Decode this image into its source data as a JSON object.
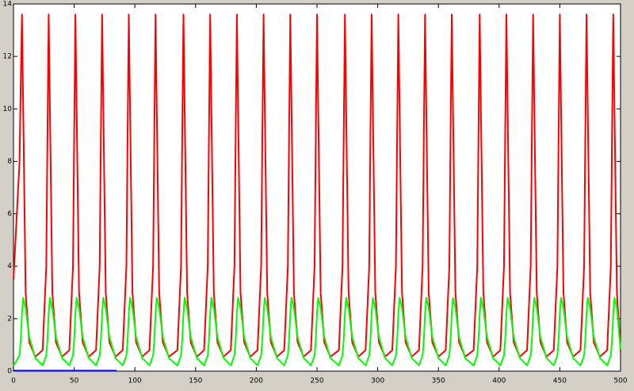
{
  "chart_data": {
    "type": "line",
    "xlim": [
      0,
      500
    ],
    "xticks": [
      0,
      50,
      100,
      150,
      200,
      250,
      300,
      350,
      400,
      450,
      500
    ],
    "ylim": [
      0,
      14
    ],
    "yticks": [
      0,
      2,
      4,
      6,
      8,
      10,
      12,
      14
    ],
    "series": [
      {
        "color": "#ff0000",
        "x": [
          0,
          5,
          6,
          7,
          8,
          10,
          13,
          18,
          24,
          27,
          28,
          29,
          30,
          32,
          35,
          40,
          46,
          49,
          50,
          51,
          52,
          54,
          57,
          62,
          68,
          71,
          72,
          73,
          74,
          76,
          79,
          84,
          90,
          93,
          94,
          95,
          96,
          98,
          101,
          106,
          112,
          115,
          116,
          117,
          118,
          120,
          123,
          128,
          135,
          138,
          139,
          140,
          141,
          143,
          146,
          151,
          157,
          160,
          161,
          162,
          163,
          165,
          168,
          173,
          179,
          182,
          183,
          184,
          185,
          187,
          190,
          195,
          201,
          204,
          205,
          206,
          207,
          209,
          212,
          217,
          223,
          226,
          227,
          228,
          229,
          231,
          234,
          239,
          245,
          248,
          249,
          250,
          251,
          253,
          256,
          261,
          268,
          271,
          272,
          273,
          274,
          276,
          279,
          284,
          290,
          293,
          294,
          295,
          296,
          298,
          301,
          306,
          312,
          315,
          316,
          317,
          318,
          320,
          323,
          328,
          334,
          337,
          338,
          339,
          340,
          342,
          345,
          350,
          356,
          359,
          360,
          361,
          362,
          364,
          367,
          372,
          379,
          382,
          383,
          384,
          385,
          387,
          390,
          395,
          401,
          404,
          405,
          406,
          407,
          409,
          412,
          417,
          423,
          426,
          427,
          428,
          429,
          431,
          434,
          439,
          445,
          448,
          449,
          450,
          451,
          453,
          456,
          461,
          467,
          470,
          471,
          472,
          473,
          475,
          478,
          483,
          489,
          492,
          493,
          494,
          495,
          497,
          500
        ],
        "values": [
          3.5,
          8,
          11,
          13.6,
          10,
          3,
          1.1,
          0.55,
          0.8,
          4,
          9,
          13.6,
          10,
          3,
          1.1,
          0.55,
          0.8,
          4,
          9,
          13.6,
          10,
          3,
          1.1,
          0.55,
          0.8,
          4,
          9,
          13.6,
          10,
          3,
          1.1,
          0.55,
          0.8,
          4,
          9,
          13.6,
          10,
          3,
          1.1,
          0.55,
          0.8,
          4,
          9,
          13.6,
          10,
          3,
          1.1,
          0.55,
          0.8,
          4,
          9,
          13.6,
          10,
          3,
          1.1,
          0.55,
          0.8,
          4,
          9,
          13.6,
          10,
          3,
          1.1,
          0.55,
          0.8,
          4,
          9,
          13.6,
          10,
          3,
          1.1,
          0.55,
          0.8,
          4,
          9,
          13.6,
          10,
          3,
          1.1,
          0.55,
          0.8,
          4,
          9,
          13.6,
          10,
          3,
          1.1,
          0.55,
          0.8,
          4,
          9,
          13.6,
          10,
          3,
          1.1,
          0.55,
          0.8,
          4,
          9,
          13.6,
          10,
          3,
          1.1,
          0.55,
          0.8,
          4,
          9,
          13.6,
          10,
          3,
          1.1,
          0.55,
          0.8,
          4,
          9,
          13.6,
          10,
          3,
          1.1,
          0.55,
          0.8,
          4,
          9,
          13.6,
          10,
          3,
          1.1,
          0.55,
          0.8,
          4,
          9,
          13.6,
          10,
          3,
          1.1,
          0.55,
          0.8,
          4,
          9,
          13.6,
          10,
          3,
          1.1,
          0.55,
          0.8,
          4,
          9,
          13.6,
          10,
          3,
          1.1,
          0.55,
          0.8,
          4,
          9,
          13.6,
          10,
          3,
          1.1,
          0.55,
          0.8,
          4,
          9,
          13.6,
          10,
          3,
          1.1,
          0.55,
          0.8,
          4,
          9,
          13.6,
          10,
          3,
          1.1,
          0.55,
          0.8,
          4,
          9,
          13.6,
          10,
          3,
          0.75
        ]
      },
      {
        "color": "#00ff00",
        "x": [
          0,
          5,
          6,
          7,
          8,
          10,
          13,
          18,
          24,
          27,
          28,
          29,
          30,
          32,
          35,
          40,
          46,
          49,
          50,
          51,
          52,
          54,
          57,
          62,
          68,
          71,
          72,
          73,
          74,
          76,
          79,
          84,
          90,
          93,
          94,
          95,
          96,
          98,
          101,
          106,
          112,
          115,
          116,
          117,
          118,
          120,
          123,
          128,
          135,
          138,
          139,
          140,
          141,
          143,
          146,
          151,
          157,
          160,
          161,
          162,
          163,
          165,
          168,
          173,
          179,
          182,
          183,
          184,
          185,
          187,
          190,
          195,
          201,
          204,
          205,
          206,
          207,
          209,
          212,
          217,
          223,
          226,
          227,
          228,
          229,
          231,
          234,
          239,
          245,
          248,
          249,
          250,
          251,
          253,
          256,
          261,
          268,
          271,
          272,
          273,
          274,
          276,
          279,
          284,
          290,
          293,
          294,
          295,
          296,
          298,
          301,
          306,
          312,
          315,
          316,
          317,
          318,
          320,
          323,
          328,
          334,
          337,
          338,
          339,
          340,
          342,
          345,
          350,
          356,
          359,
          360,
          361,
          362,
          364,
          367,
          372,
          379,
          382,
          383,
          384,
          385,
          387,
          390,
          395,
          401,
          404,
          405,
          406,
          407,
          409,
          412,
          417,
          423,
          426,
          427,
          428,
          429,
          431,
          434,
          439,
          445,
          448,
          449,
          450,
          451,
          453,
          456,
          461,
          467,
          470,
          471,
          472,
          473,
          475,
          478,
          483,
          489,
          492,
          493,
          494,
          495,
          497,
          500
        ],
        "values": [
          0.2,
          0.6,
          1.2,
          2.2,
          2.8,
          2.4,
          1.3,
          0.5,
          0.22,
          0.6,
          1.2,
          2.2,
          2.8,
          2.4,
          1.3,
          0.5,
          0.22,
          0.6,
          1.2,
          2.2,
          2.8,
          2.4,
          1.3,
          0.5,
          0.22,
          0.6,
          1.2,
          2.2,
          2.8,
          2.4,
          1.3,
          0.5,
          0.22,
          0.6,
          1.2,
          2.2,
          2.8,
          2.4,
          1.3,
          0.5,
          0.22,
          0.6,
          1.2,
          2.2,
          2.8,
          2.4,
          1.3,
          0.5,
          0.22,
          0.6,
          1.2,
          2.2,
          2.8,
          2.4,
          1.3,
          0.5,
          0.22,
          0.6,
          1.2,
          2.2,
          2.8,
          2.4,
          1.3,
          0.5,
          0.22,
          0.6,
          1.2,
          2.2,
          2.8,
          2.4,
          1.3,
          0.5,
          0.22,
          0.6,
          1.2,
          2.2,
          2.8,
          2.4,
          1.3,
          0.5,
          0.22,
          0.6,
          1.2,
          2.2,
          2.8,
          2.4,
          1.3,
          0.5,
          0.22,
          0.6,
          1.2,
          2.2,
          2.8,
          2.4,
          1.3,
          0.5,
          0.22,
          0.6,
          1.2,
          2.2,
          2.8,
          2.4,
          1.3,
          0.5,
          0.22,
          0.6,
          1.2,
          2.2,
          2.8,
          2.4,
          1.3,
          0.5,
          0.22,
          0.6,
          1.2,
          2.2,
          2.8,
          2.4,
          1.3,
          0.5,
          0.22,
          0.6,
          1.2,
          2.2,
          2.8,
          2.4,
          1.3,
          0.5,
          0.22,
          0.6,
          1.2,
          2.2,
          2.8,
          2.4,
          1.3,
          0.5,
          0.22,
          0.6,
          1.2,
          2.2,
          2.8,
          2.4,
          1.3,
          0.5,
          0.22,
          0.6,
          1.2,
          2.2,
          2.8,
          2.4,
          1.3,
          0.5,
          0.22,
          0.6,
          1.2,
          2.2,
          2.8,
          2.4,
          1.3,
          0.5,
          0.22,
          0.6,
          1.2,
          2.2,
          2.8,
          2.4,
          1.3,
          0.5,
          0.22,
          0.6,
          1.2,
          2.2,
          2.8,
          2.4,
          1.3,
          0.5,
          0.22,
          0.6,
          1.2,
          2.2,
          2.8,
          2.4,
          0.8
        ]
      },
      {
        "color": "#0000ff",
        "x": [
          0,
          85
        ],
        "values": [
          0.02,
          0.02
        ]
      }
    ]
  }
}
